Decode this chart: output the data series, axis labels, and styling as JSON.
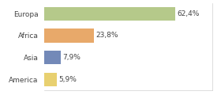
{
  "categories": [
    "Europa",
    "Africa",
    "Asia",
    "America"
  ],
  "values": [
    62.4,
    23.8,
    7.9,
    5.9
  ],
  "labels": [
    "62,4%",
    "23,8%",
    "7,9%",
    "5,9%"
  ],
  "bar_colors": [
    "#b5c98a",
    "#e8a96a",
    "#7389b8",
    "#e8d070"
  ],
  "background_color": "#ffffff",
  "xlim": [
    0,
    80
  ],
  "bar_height": 0.62,
  "label_fontsize": 6.5,
  "tick_fontsize": 6.5
}
